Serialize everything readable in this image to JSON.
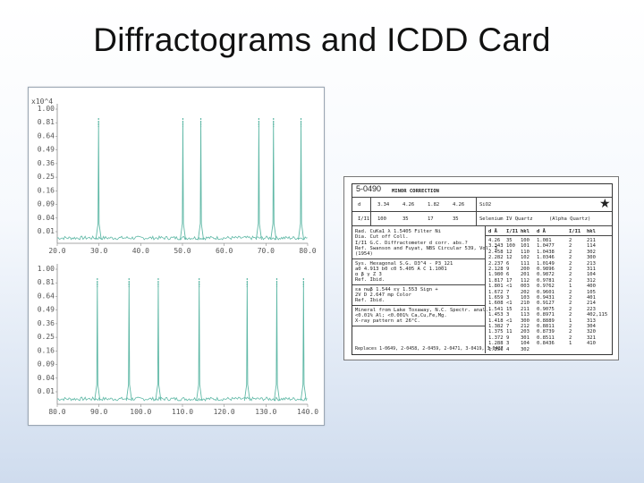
{
  "title": "Diffractograms and ICDD Card",
  "plot_top": {
    "exponent_label": "x10^4",
    "y_ticks": [
      "1.00",
      "0.81",
      "0.64",
      "0.49",
      "0.36",
      "0.25",
      "0.16",
      "0.09",
      "0.04",
      "0.01"
    ],
    "x_ticks": [
      "20.0",
      "30.0",
      "40.0",
      "50.0",
      "60.0",
      "70.0",
      "80.0"
    ],
    "peaks_2theta": [
      29.9,
      50.1,
      54.4,
      68.3,
      71.8,
      78.4
    ]
  },
  "plot_bottom": {
    "y_ticks": [
      "1.00",
      "0.81",
      "0.64",
      "0.49",
      "0.36",
      "0.25",
      "0.16",
      "0.09",
      "0.04",
      "0.01"
    ],
    "x_ticks": [
      "80.0",
      "90.0",
      "100.0",
      "110.0",
      "120.0",
      "130.0",
      "140.0"
    ],
    "peaks_2theta": [
      89.6,
      97.2,
      104.2,
      114.0,
      125.5,
      132.6,
      139.0
    ]
  },
  "card": {
    "number": "5-0490",
    "header_note": "MINOR CORRECTION",
    "d_label": "d",
    "d_values": [
      "3.34",
      "4.26",
      "1.82",
      "4.26"
    ],
    "compound": "SiO2",
    "ii_label": "I/I1",
    "ii_values": [
      "100",
      "35",
      "17",
      "35"
    ],
    "mineral": "Selenium IV Quartz",
    "mineral_sub": "(Alpha Quartz)",
    "star": "★",
    "rad_lines": [
      "Rad. CuKa1   λ 1.5405   Filter Ni",
      "Dia.   Cut off    Coll.",
      "I/I1 G.C. Diffractometer   d corr. abs.?",
      "Ref. Swanson and Fuyat, NBS Circular 539, Vol. 3",
      "(1954)"
    ],
    "sys_lines": [
      "Sys. Hexagonal     S.G. D3^4 - P3_121",
      "a0 4.913  b0   c0 5.405   A   C 1.1001",
      "α     β     γ     Z 3",
      "Ref. Ibid."
    ],
    "opt_lines": [
      "εa        nωβ 1.544   εγ 1.553   Sign +",
      "2V     D 2.647   mp     Color",
      "Ref. Ibid."
    ],
    "note_lines": [
      "Mineral from Lake Toxaway, N.C. Spectr. anal.:",
      "<0.01% Al; <0.001% Ca,Cu,Fe,Mg.",
      "X-ray pattern at 26°C."
    ],
    "replaces": "Replaces 1-0649, 2-0458, 2-0459, 2-0471, 3-0419, 3-0427",
    "col_headers": [
      "d Å",
      "I/I1",
      "hkl",
      "d Å",
      "I/I1",
      "hkl"
    ],
    "rows": [
      [
        "4.26",
        "35",
        "100",
        "1.081",
        "2",
        "211"
      ],
      [
        "3.343",
        "100",
        "101",
        "1.0477",
        "2",
        "114"
      ],
      [
        "2.458",
        "12",
        "110",
        "1.0438",
        "2",
        "302"
      ],
      [
        "2.282",
        "12",
        "102",
        "1.0346",
        "2",
        "300"
      ],
      [
        "2.237",
        "6",
        "111",
        "1.0149",
        "2",
        "213"
      ],
      [
        "2.128",
        "9",
        "200",
        "0.9896",
        "2",
        "311"
      ],
      [
        "1.980",
        "6",
        "201",
        "0.9872",
        "2",
        "104"
      ],
      [
        "1.817",
        "17",
        "112",
        "0.9781",
        "2",
        "312"
      ],
      [
        "1.801",
        "<1",
        "003",
        "0.9762",
        "1",
        "400"
      ],
      [
        "1.672",
        "7",
        "202",
        "0.9601",
        "2",
        "105"
      ],
      [
        "1.659",
        "3",
        "103",
        "0.9431",
        "2",
        "401"
      ],
      [
        "1.608",
        "<1",
        "210",
        "0.9127",
        "2",
        "214"
      ],
      [
        "1.541",
        "15",
        "211",
        "0.9075",
        "2",
        "223"
      ],
      [
        "1.453",
        "3",
        "113",
        "0.8971",
        "2",
        "402,115"
      ],
      [
        "1.418",
        "<1",
        "300",
        "0.8889",
        "1",
        "313"
      ],
      [
        "1.382",
        "7",
        "212",
        "0.8811",
        "2",
        "304"
      ],
      [
        "1.375",
        "11",
        "203",
        "0.8739",
        "2",
        "320"
      ],
      [
        "1.372",
        "9",
        "301",
        "0.8511",
        "2",
        "321"
      ],
      [
        "1.288",
        "3",
        "104",
        "0.8436",
        "1",
        "410"
      ],
      [
        "1.256",
        "4",
        "302",
        "",
        "",
        " "
      ]
    ]
  }
}
